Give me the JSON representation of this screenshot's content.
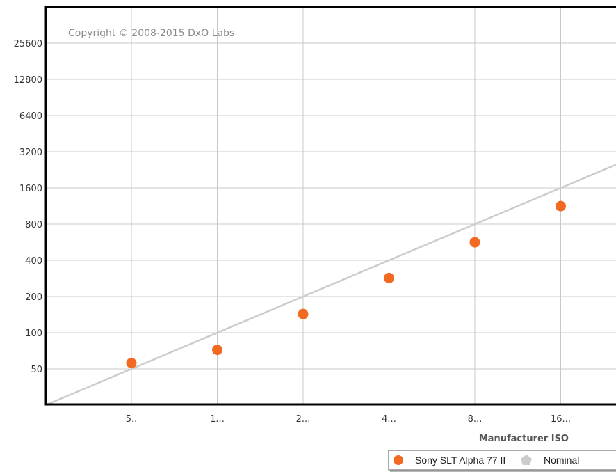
{
  "chart_data": {
    "type": "scatter",
    "title": "",
    "xlabel": "Manufacturer ISO",
    "ylabel": "",
    "watermark": "Copyright © 2008-2015 DxO Labs",
    "x_scale": "log2",
    "y_scale": "log2",
    "x_ticks": [
      {
        "value": 50,
        "label": "5.."
      },
      {
        "value": 100,
        "label": "1..."
      },
      {
        "value": 200,
        "label": "2..."
      },
      {
        "value": 400,
        "label": "4..."
      },
      {
        "value": 800,
        "label": "8..."
      },
      {
        "value": 1600,
        "label": "16..."
      }
    ],
    "y_ticks": [
      50,
      100,
      200,
      400,
      800,
      1600,
      3200,
      6400,
      12800,
      25600
    ],
    "series": [
      {
        "name": "Sony SLT Alpha 77 II",
        "color": "#f26a21",
        "marker": "circle",
        "points": [
          {
            "x": 50,
            "y": 56
          },
          {
            "x": 100,
            "y": 72
          },
          {
            "x": 200,
            "y": 143
          },
          {
            "x": 400,
            "y": 285
          },
          {
            "x": 800,
            "y": 565
          },
          {
            "x": 1600,
            "y": 1130
          }
        ]
      },
      {
        "name": "Nominal",
        "color": "#cccccc",
        "marker": "pentagon",
        "type": "line",
        "points": [
          {
            "x": 50,
            "y": 50
          },
          {
            "x": 1600,
            "y": 1600
          }
        ]
      }
    ],
    "grid": true,
    "legend": "bottom-right"
  }
}
